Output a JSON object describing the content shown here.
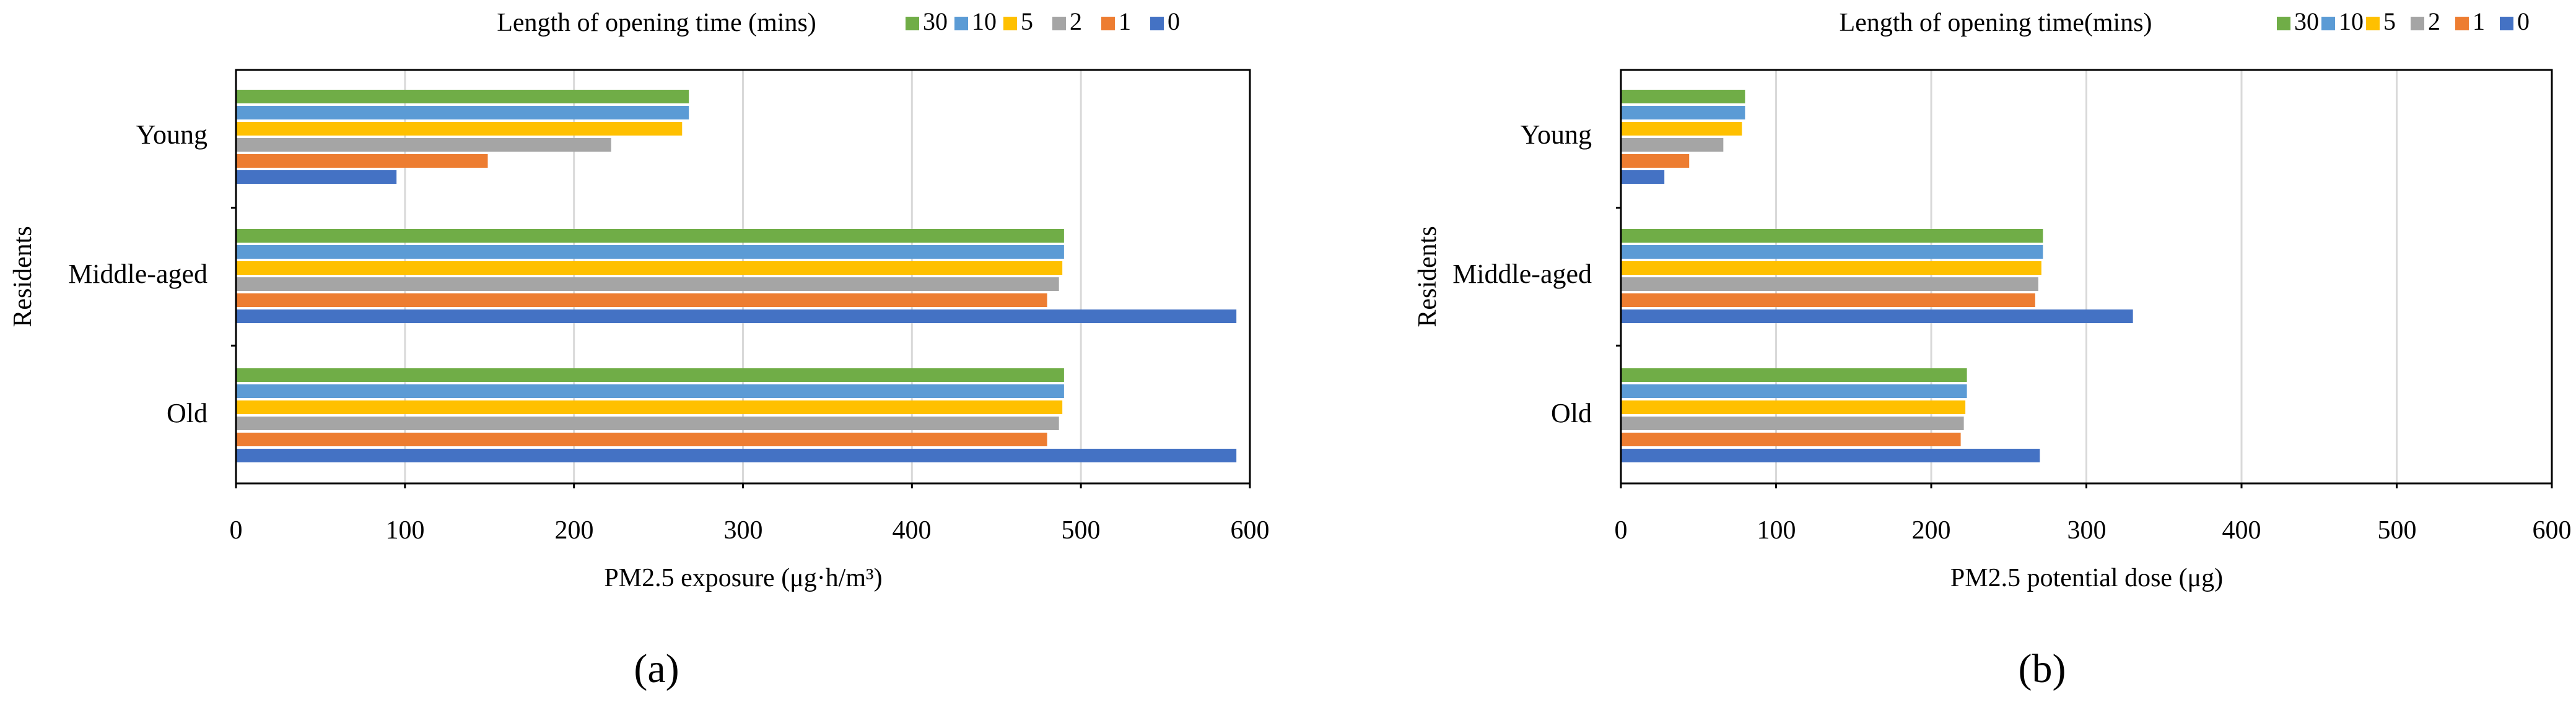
{
  "colors": {
    "30": "#70AD47",
    "10": "#5B9BD5",
    "5": "#FFC000",
    "2": "#A5A5A5",
    "1": "#ED7D31",
    "0": "#4472C4"
  },
  "chart_data": [
    {
      "type": "bar",
      "orientation": "horizontal",
      "panel_label": "(a)",
      "legend_title": "Length of opening time (mins)",
      "legend_entries": [
        "30",
        "10",
        "5",
        "2",
        "1",
        "0"
      ],
      "ylabel": "Residents",
      "xlabel": "PM2.5 exposure (μg·h/m³)",
      "xlim": [
        0,
        600
      ],
      "xticks": [
        0,
        100,
        200,
        300,
        400,
        500,
        600
      ],
      "categories": [
        "Young",
        "Middle-aged",
        "Old"
      ],
      "series": [
        {
          "name": "30",
          "values": [
            268,
            490,
            490
          ]
        },
        {
          "name": "10",
          "values": [
            268,
            490,
            490
          ]
        },
        {
          "name": "5",
          "values": [
            264,
            489,
            489
          ]
        },
        {
          "name": "2",
          "values": [
            222,
            487,
            487
          ]
        },
        {
          "name": "1",
          "values": [
            149,
            480,
            480
          ]
        },
        {
          "name": "0",
          "values": [
            95,
            592,
            592
          ]
        }
      ]
    },
    {
      "type": "bar",
      "orientation": "horizontal",
      "panel_label": "(b)",
      "legend_title": "Length of opening time(mins)",
      "legend_entries": [
        "30",
        "10",
        "5",
        "2",
        "1",
        "0"
      ],
      "ylabel": "Residents",
      "xlabel": "PM2.5 potential dose (μg)",
      "xlim": [
        0,
        600
      ],
      "xticks": [
        0,
        100,
        200,
        300,
        400,
        500,
        600
      ],
      "categories": [
        "Young",
        "Middle-aged",
        "Old"
      ],
      "series": [
        {
          "name": "30",
          "values": [
            80,
            272,
            223
          ]
        },
        {
          "name": "10",
          "values": [
            80,
            272,
            223
          ]
        },
        {
          "name": "5",
          "values": [
            78,
            271,
            222
          ]
        },
        {
          "name": "2",
          "values": [
            66,
            269,
            221
          ]
        },
        {
          "name": "1",
          "values": [
            44,
            267,
            219
          ]
        },
        {
          "name": "0",
          "values": [
            28,
            330,
            270
          ]
        }
      ]
    }
  ]
}
